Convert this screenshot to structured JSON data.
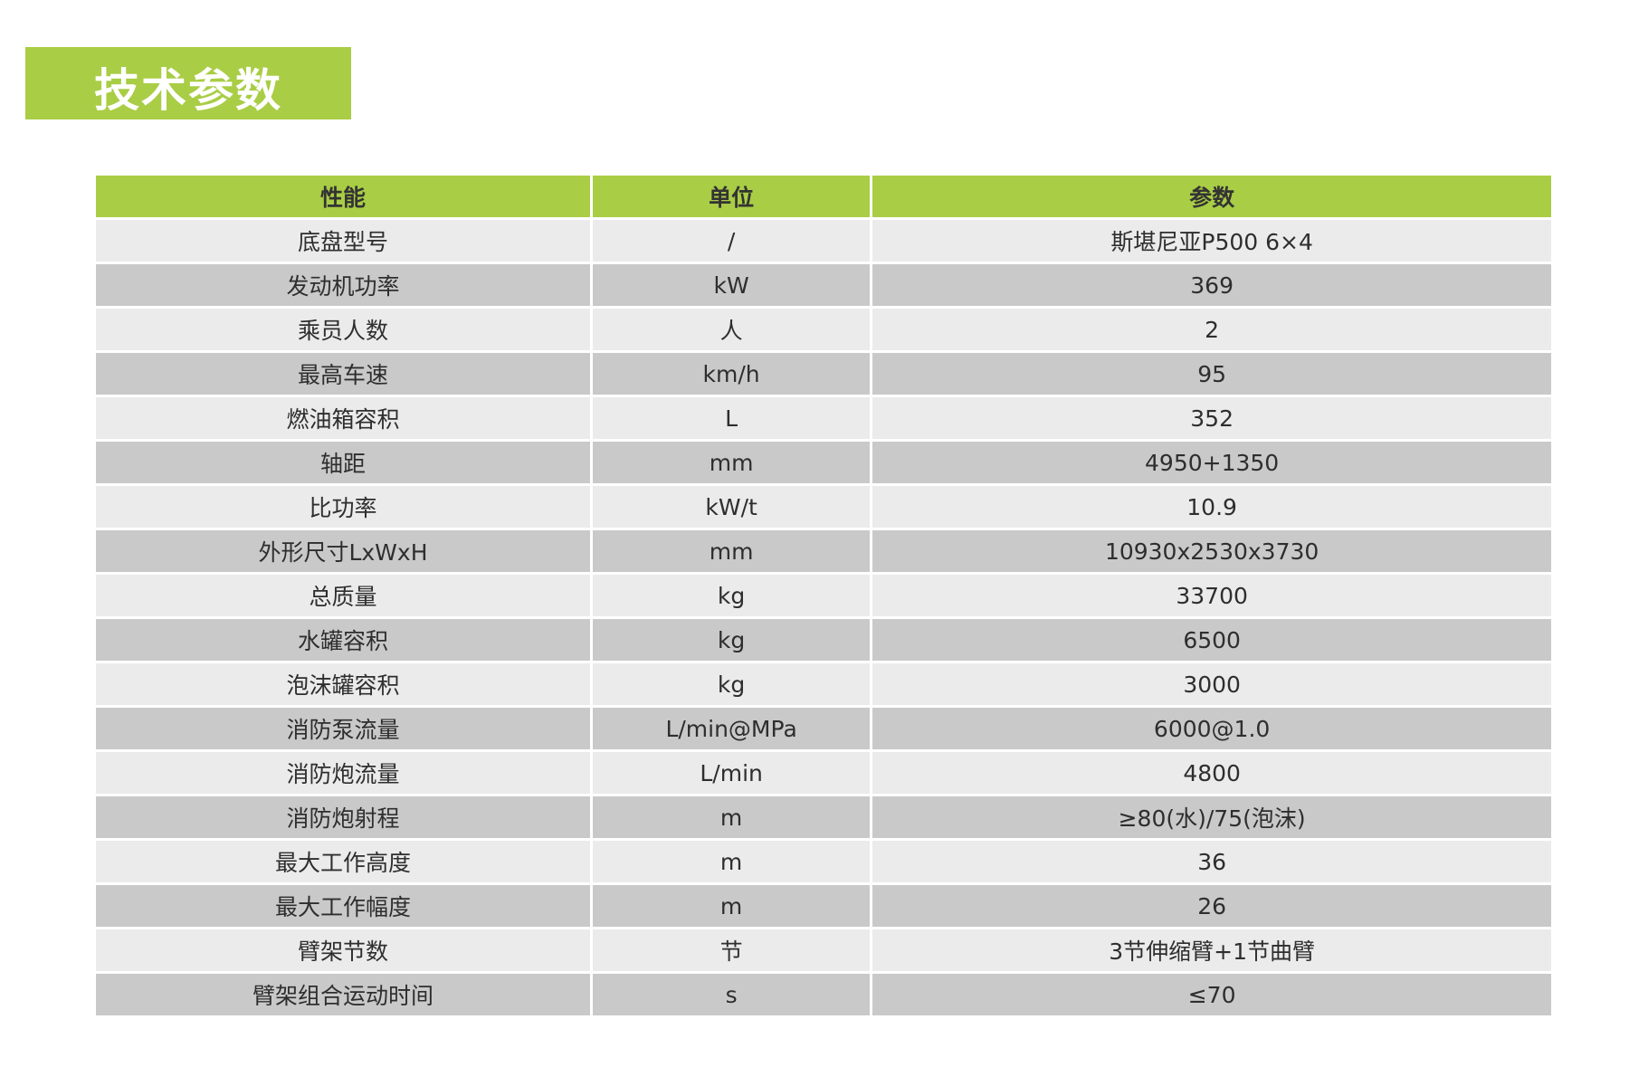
{
  "title": "技术参数",
  "colors": {
    "accent": "#a9cd45",
    "row_light": "#ebebeb",
    "row_dark": "#c9c9c9"
  },
  "table": {
    "headers": [
      "性能",
      "单位",
      "参数"
    ],
    "rows": [
      [
        "底盘型号",
        "/",
        "斯堪尼亚P500 6×4"
      ],
      [
        "发动机功率",
        "kW",
        "369"
      ],
      [
        "乘员人数",
        "人",
        "2"
      ],
      [
        "最高车速",
        "km/h",
        "95"
      ],
      [
        "燃油箱容积",
        "L",
        "352"
      ],
      [
        "轴距",
        "mm",
        "4950+1350"
      ],
      [
        "比功率",
        "kW/t",
        "10.9"
      ],
      [
        "外形尺寸LxWxH",
        "mm",
        "10930x2530x3730"
      ],
      [
        "总质量",
        "kg",
        "33700"
      ],
      [
        "水罐容积",
        "kg",
        "6500"
      ],
      [
        "泡沫罐容积",
        "kg",
        "3000"
      ],
      [
        "消防泵流量",
        "L/min@MPa",
        "6000@1.0"
      ],
      [
        "消防炮流量",
        "L/min",
        "4800"
      ],
      [
        "消防炮射程",
        "m",
        "≥80(水)/75(泡沫)"
      ],
      [
        "最大工作高度",
        "m",
        "36"
      ],
      [
        "最大工作幅度",
        "m",
        "26"
      ],
      [
        "臂架节数",
        "节",
        "3节伸缩臂+1节曲臂"
      ],
      [
        "臂架组合运动时间",
        "s",
        "≤70"
      ]
    ]
  }
}
